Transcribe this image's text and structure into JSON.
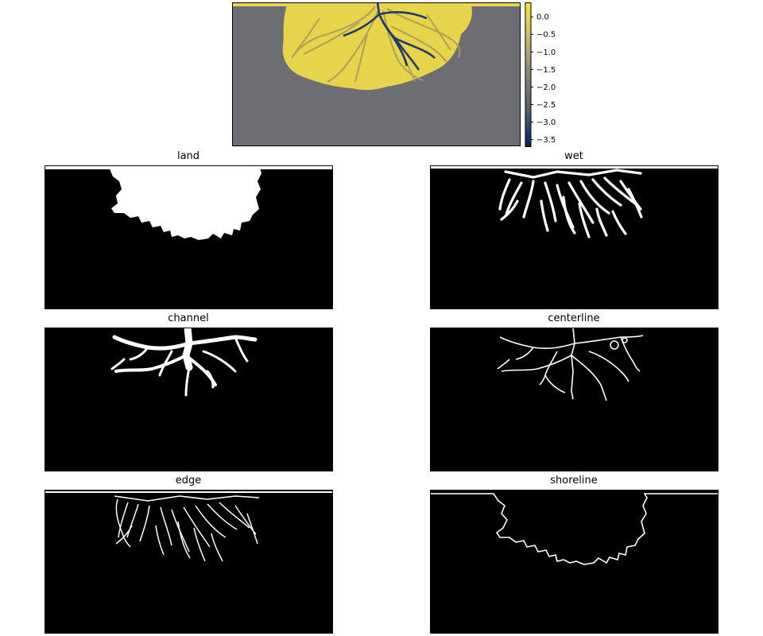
{
  "figure": {
    "panels": [
      {
        "key": "land",
        "title": "land"
      },
      {
        "key": "wet",
        "title": "wet"
      },
      {
        "key": "channel",
        "title": "channel"
      },
      {
        "key": "centerline",
        "title": "centerline"
      },
      {
        "key": "edge",
        "title": "edge"
      },
      {
        "key": "shoreline",
        "title": "shoreline"
      }
    ]
  },
  "chart_data": [
    {
      "type": "heatmap",
      "title": "",
      "colormap": "cividis",
      "colorbar": {
        "ticks": [
          0.0,
          -0.5,
          -1.0,
          -1.5,
          -2.0,
          -2.5,
          -3.0,
          -3.5
        ],
        "tick_labels": [
          "0.0",
          "−0.5",
          "−1.0",
          "−1.5",
          "−2.0",
          "−2.5",
          "−3.0",
          "−3.5"
        ],
        "range": [
          -3.7,
          0.4
        ]
      },
      "colors": {
        "land": "#e8d44a",
        "basin": "#6c6e73",
        "channel": "#1e3a6e"
      }
    },
    {
      "type": "heatmap",
      "title": "land",
      "binary": true,
      "colors": {
        "on": "#ffffff",
        "off": "#000000"
      }
    },
    {
      "type": "heatmap",
      "title": "wet",
      "binary": true,
      "colors": {
        "on": "#ffffff",
        "off": "#000000"
      }
    },
    {
      "type": "heatmap",
      "title": "channel",
      "binary": true,
      "colors": {
        "on": "#ffffff",
        "off": "#000000"
      }
    },
    {
      "type": "heatmap",
      "title": "centerline",
      "binary": true,
      "colors": {
        "on": "#ffffff",
        "off": "#000000"
      }
    },
    {
      "type": "heatmap",
      "title": "edge",
      "binary": true,
      "colors": {
        "on": "#ffffff",
        "off": "#000000"
      }
    },
    {
      "type": "heatmap",
      "title": "shoreline",
      "binary": true,
      "colors": {
        "on": "#ffffff",
        "off": "#000000"
      }
    }
  ]
}
